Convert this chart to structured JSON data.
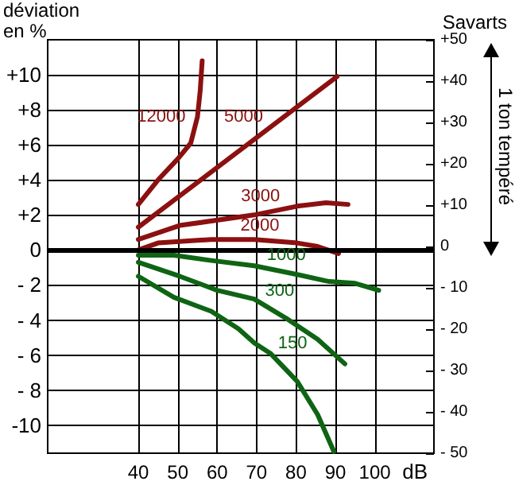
{
  "chart_data": {
    "type": "line",
    "ylabel": "déviation\nen %",
    "y2label": "Savarts",
    "xlabel": "dB",
    "annotations": [
      "1 ton tempéré"
    ],
    "xlim": [
      17,
      115
    ],
    "xticks": [
      40,
      50,
      60,
      70,
      80,
      90,
      100
    ],
    "ylim": [
      -11.6,
      12
    ],
    "yticks": [
      {
        "value": 10,
        "label": "+10"
      },
      {
        "value": 8,
        "label": "+8"
      },
      {
        "value": 6,
        "label": "+6"
      },
      {
        "value": 4,
        "label": "+4"
      },
      {
        "value": 2,
        "label": "+2"
      },
      0,
      {
        "value": -2,
        "label": "- 2"
      },
      {
        "value": -4,
        "label": "- 4"
      },
      {
        "value": -6,
        "label": "- 6"
      },
      {
        "value": -8,
        "label": "- 8"
      },
      -10
    ],
    "y2lim": [
      -50,
      50
    ],
    "y2ticks": [
      {
        "value": 50,
        "label": "+50"
      },
      {
        "value": 40,
        "label": "+40"
      },
      {
        "value": 30,
        "label": "+30"
      },
      {
        "value": 20,
        "label": "+20"
      },
      {
        "value": 10,
        "label": "+10"
      },
      0,
      {
        "value": -10,
        "label": "- 10"
      },
      {
        "value": -20,
        "label": "- 20"
      },
      {
        "value": -30,
        "label": "- 30"
      },
      {
        "value": -40,
        "label": "- 40"
      },
      {
        "value": -50,
        "label": "- 50"
      }
    ],
    "grid": true,
    "marker": "none",
    "line_style": "solid",
    "ref_lines": [
      {
        "axis": "y",
        "value": 0,
        "label": null,
        "color": "#000000"
      }
    ],
    "series": [
      {
        "name": "12000",
        "color": "#8c1010",
        "x": [
          40,
          45,
          50,
          53.3,
          55,
          55.7,
          56.2
        ],
        "values": [
          2.6,
          4.0,
          5.2,
          6.1,
          7.6,
          9.1,
          10.8
        ]
      },
      {
        "name": "5000",
        "color": "#8c1010",
        "x": [
          40,
          90.4
        ],
        "values": [
          1.3,
          9.9
        ]
      },
      {
        "name": "3000",
        "color": "#8c1010",
        "x": [
          40,
          50.5,
          69.4,
          80.3,
          87.6,
          93.2
        ],
        "values": [
          0.6,
          1.4,
          2.0,
          2.5,
          2.7,
          2.6
        ]
      },
      {
        "name": "2000",
        "color": "#8c1010",
        "x": [
          40,
          45,
          58.5,
          69.4,
          80.3,
          85.5,
          90.8
        ],
        "values": [
          0,
          0.4,
          0.6,
          0.6,
          0.4,
          0.2,
          -0.2
        ]
      },
      {
        "name": "1000",
        "color": "#0f6414",
        "x": [
          40,
          49,
          58.5,
          69.4,
          80.3,
          88.4,
          95,
          101
        ],
        "values": [
          -0.3,
          -0.3,
          -0.6,
          -0.9,
          -1.4,
          -1.8,
          -1.9,
          -2.3
        ]
      },
      {
        "name": "300",
        "color": "#0f6414",
        "x": [
          40,
          50.5,
          60,
          69.4,
          77.5,
          85.5,
          92.4
        ],
        "values": [
          -0.7,
          -1.5,
          -2.3,
          -2.8,
          -3.9,
          -5.1,
          -6.5
        ]
      },
      {
        "name": "150",
        "color": "#0f6414",
        "x": [
          40,
          49,
          58.5,
          65.4,
          69.4,
          73.5,
          80.3,
          85.5,
          89.6
        ],
        "values": [
          -1.5,
          -2.7,
          -3.5,
          -4.5,
          -5.3,
          -5.9,
          -7.5,
          -9.4,
          -11.5
        ]
      }
    ]
  }
}
